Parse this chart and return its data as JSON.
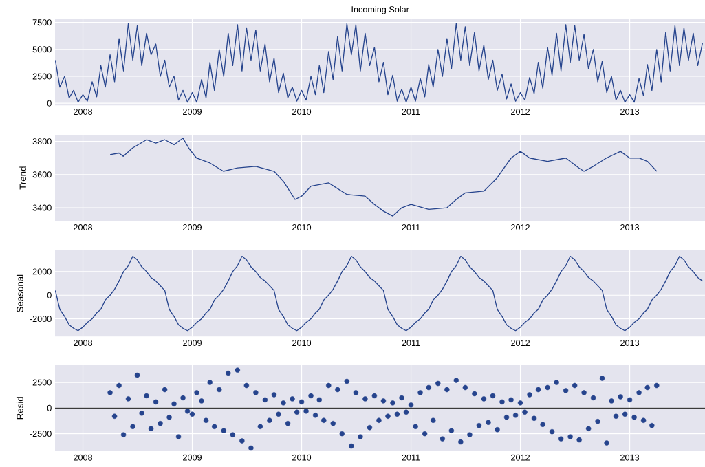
{
  "chart_data": [
    {
      "type": "line",
      "title": "Incoming Solar",
      "color": "#26448d",
      "grid": true,
      "xlim": [
        "2007-09-30",
        "2013-09-10"
      ],
      "ylim": [
        -200,
        7800
      ],
      "yticks": [
        0,
        2500,
        5000,
        7500
      ],
      "xticks": [
        {
          "value": "2008-01-01",
          "label": "2008"
        },
        {
          "value": "2009-01-01",
          "label": "2009"
        },
        {
          "value": "2010-01-01",
          "label": "2010"
        },
        {
          "value": "2011-01-01",
          "label": "2011"
        },
        {
          "value": "2012-01-01",
          "label": "2012"
        },
        {
          "value": "2013-01-01",
          "label": "2013"
        }
      ],
      "x": [
        "2007-10-01",
        "2007-10-16",
        "2007-11-01",
        "2007-11-16",
        "2007-12-01",
        "2007-12-16",
        "2008-01-01",
        "2008-01-16",
        "2008-02-01",
        "2008-02-16",
        "2008-03-01",
        "2008-03-16",
        "2008-04-01",
        "2008-04-16",
        "2008-05-01",
        "2008-05-16",
        "2008-06-01",
        "2008-06-16",
        "2008-07-01",
        "2008-07-16",
        "2008-08-01",
        "2008-08-16",
        "2008-09-01",
        "2008-09-16",
        "2008-10-01",
        "2008-10-16",
        "2008-11-01",
        "2008-11-16",
        "2008-12-01",
        "2008-12-16",
        "2009-01-01",
        "2009-01-16",
        "2009-02-01",
        "2009-02-16",
        "2009-03-01",
        "2009-03-16",
        "2009-04-01",
        "2009-04-16",
        "2009-05-01",
        "2009-05-16",
        "2009-06-01",
        "2009-06-16",
        "2009-07-01",
        "2009-07-16",
        "2009-08-01",
        "2009-08-16",
        "2009-09-01",
        "2009-09-16",
        "2009-10-01",
        "2009-10-16",
        "2009-11-01",
        "2009-11-16",
        "2009-12-01",
        "2009-12-16",
        "2010-01-01",
        "2010-01-16",
        "2010-02-01",
        "2010-02-16",
        "2010-03-01",
        "2010-03-16",
        "2010-04-01",
        "2010-04-16",
        "2010-05-01",
        "2010-05-16",
        "2010-06-01",
        "2010-06-16",
        "2010-07-01",
        "2010-07-16",
        "2010-08-01",
        "2010-08-16",
        "2010-09-01",
        "2010-09-16",
        "2010-10-01",
        "2010-10-16",
        "2010-11-01",
        "2010-11-16",
        "2010-12-01",
        "2010-12-16",
        "2011-01-01",
        "2011-01-16",
        "2011-02-01",
        "2011-02-16",
        "2011-03-01",
        "2011-03-16",
        "2011-04-01",
        "2011-04-16",
        "2011-05-01",
        "2011-05-16",
        "2011-06-01",
        "2011-06-16",
        "2011-07-01",
        "2011-07-16",
        "2011-08-01",
        "2011-08-16",
        "2011-09-01",
        "2011-09-16",
        "2011-10-01",
        "2011-10-16",
        "2011-11-01",
        "2011-11-16",
        "2011-12-01",
        "2011-12-16",
        "2012-01-01",
        "2012-01-16",
        "2012-02-01",
        "2012-02-16",
        "2012-03-01",
        "2012-03-16",
        "2012-04-01",
        "2012-04-16",
        "2012-05-01",
        "2012-05-16",
        "2012-06-01",
        "2012-06-16",
        "2012-07-01",
        "2012-07-16",
        "2012-08-01",
        "2012-08-16",
        "2012-09-01",
        "2012-09-16",
        "2012-10-01",
        "2012-10-16",
        "2012-11-01",
        "2012-11-16",
        "2012-12-01",
        "2012-12-16",
        "2013-01-01",
        "2013-01-16",
        "2013-02-01",
        "2013-02-16",
        "2013-03-01",
        "2013-03-16",
        "2013-04-01",
        "2013-04-16",
        "2013-05-01",
        "2013-05-16",
        "2013-06-01",
        "2013-06-16",
        "2013-07-01",
        "2013-07-16",
        "2013-08-01",
        "2013-08-16",
        "2013-09-01"
      ],
      "values": [
        4000,
        1500,
        2500,
        500,
        1200,
        100,
        800,
        200,
        2000,
        600,
        3500,
        1500,
        4500,
        2000,
        6000,
        3000,
        7400,
        4000,
        7200,
        3500,
        6500,
        4500,
        5500,
        2500,
        4000,
        1500,
        2500,
        300,
        1200,
        100,
        1000,
        100,
        2200,
        500,
        3800,
        1200,
        5000,
        2500,
        6500,
        3500,
        7300,
        3000,
        7000,
        4000,
        6800,
        3000,
        5500,
        2000,
        4200,
        1000,
        2800,
        500,
        1500,
        200,
        1200,
        300,
        2500,
        800,
        3500,
        1000,
        4800,
        2200,
        6200,
        3000,
        7400,
        4500,
        7300,
        3000,
        6500,
        3500,
        5200,
        2000,
        3800,
        800,
        2600,
        200,
        1300,
        100,
        1500,
        200,
        2300,
        600,
        3600,
        1500,
        5000,
        2500,
        6000,
        3200,
        7400,
        4000,
        7100,
        3500,
        6600,
        3000,
        5400,
        2200,
        4000,
        1200,
        2700,
        400,
        1800,
        200,
        1000,
        300,
        2400,
        900,
        3800,
        1400,
        5200,
        2600,
        6500,
        3000,
        7300,
        3800,
        7200,
        4000,
        6400,
        3200,
        5000,
        2000,
        3900,
        1000,
        2500,
        300,
        1200,
        100,
        800,
        100,
        2300,
        700,
        3600,
        1200,
        5000,
        2000,
        6600,
        3000,
        7200,
        3500,
        7000,
        4000,
        6500,
        3500,
        5600
      ]
    },
    {
      "type": "line",
      "ylabel": "Trend",
      "color": "#26448d",
      "grid": true,
      "xlim": [
        "2007-09-30",
        "2013-09-10"
      ],
      "ylim": [
        3320,
        3840
      ],
      "yticks": [
        3400,
        3600,
        3800
      ],
      "xticks": [
        {
          "value": "2008-01-01",
          "label": "2008"
        },
        {
          "value": "2009-01-01",
          "label": "2009"
        },
        {
          "value": "2010-01-01",
          "label": "2010"
        },
        {
          "value": "2011-01-01",
          "label": "2011"
        },
        {
          "value": "2012-01-01",
          "label": "2012"
        },
        {
          "value": "2013-01-01",
          "label": "2013"
        }
      ],
      "x": [
        "2008-04-01",
        "2008-05-01",
        "2008-05-15",
        "2008-06-15",
        "2008-08-01",
        "2008-09-01",
        "2008-10-01",
        "2008-11-01",
        "2008-12-01",
        "2008-12-20",
        "2009-01-15",
        "2009-03-01",
        "2009-04-15",
        "2009-06-01",
        "2009-08-01",
        "2009-10-01",
        "2009-11-01",
        "2009-12-10",
        "2010-01-01",
        "2010-02-01",
        "2010-04-01",
        "2010-06-01",
        "2010-08-01",
        "2010-09-01",
        "2010-10-01",
        "2010-11-01",
        "2010-12-01",
        "2011-01-01",
        "2011-03-01",
        "2011-05-01",
        "2011-06-01",
        "2011-07-01",
        "2011-09-01",
        "2011-10-15",
        "2011-12-01",
        "2012-01-01",
        "2012-02-01",
        "2012-04-01",
        "2012-06-01",
        "2012-07-15",
        "2012-08-01",
        "2012-09-01",
        "2012-10-15",
        "2012-12-01",
        "2013-01-01",
        "2013-02-01",
        "2013-03-01",
        "2013-04-01"
      ],
      "values": [
        3720,
        3730,
        3710,
        3760,
        3810,
        3790,
        3810,
        3780,
        3820,
        3760,
        3700,
        3670,
        3620,
        3640,
        3650,
        3620,
        3560,
        3450,
        3470,
        3530,
        3550,
        3480,
        3470,
        3420,
        3380,
        3350,
        3400,
        3420,
        3390,
        3400,
        3450,
        3490,
        3500,
        3580,
        3700,
        3740,
        3700,
        3680,
        3700,
        3640,
        3620,
        3650,
        3700,
        3740,
        3700,
        3700,
        3680,
        3620
      ]
    },
    {
      "type": "line",
      "ylabel": "Seasonal",
      "color": "#26448d",
      "grid": true,
      "xlim": [
        "2007-09-30",
        "2013-09-10"
      ],
      "ylim": [
        -3500,
        3800
      ],
      "yticks": [
        -2000,
        0,
        2000
      ],
      "xticks": [
        {
          "value": "2008-01-01",
          "label": "2008"
        },
        {
          "value": "2009-01-01",
          "label": "2009"
        },
        {
          "value": "2010-01-01",
          "label": "2010"
        },
        {
          "value": "2011-01-01",
          "label": "2011"
        },
        {
          "value": "2012-01-01",
          "label": "2012"
        },
        {
          "value": "2013-01-01",
          "label": "2013"
        }
      ],
      "x": [
        "2007-10-01",
        "2007-10-16",
        "2007-11-01",
        "2007-11-16",
        "2007-12-01",
        "2007-12-16",
        "2008-01-01",
        "2008-01-16",
        "2008-02-01",
        "2008-02-16",
        "2008-03-01",
        "2008-03-16",
        "2008-04-01",
        "2008-04-16",
        "2008-05-01",
        "2008-05-16",
        "2008-06-01",
        "2008-06-16",
        "2008-07-01",
        "2008-07-16",
        "2008-08-01",
        "2008-08-16",
        "2008-09-01",
        "2008-09-16",
        "2008-10-01",
        "2008-10-16",
        "2008-11-01",
        "2008-11-16",
        "2008-12-01",
        "2008-12-16",
        "2009-01-01",
        "2009-01-16",
        "2009-02-01",
        "2009-02-16",
        "2009-03-01",
        "2009-03-16",
        "2009-04-01",
        "2009-04-16",
        "2009-05-01",
        "2009-05-16",
        "2009-06-01",
        "2009-06-16",
        "2009-07-01",
        "2009-07-16",
        "2009-08-01",
        "2009-08-16",
        "2009-09-01",
        "2009-09-16",
        "2009-10-01",
        "2009-10-16",
        "2009-11-01",
        "2009-11-16",
        "2009-12-01",
        "2009-12-16",
        "2010-01-01",
        "2010-01-16",
        "2010-02-01",
        "2010-02-16",
        "2010-03-01",
        "2010-03-16",
        "2010-04-01",
        "2010-04-16",
        "2010-05-01",
        "2010-05-16",
        "2010-06-01",
        "2010-06-16",
        "2010-07-01",
        "2010-07-16",
        "2010-08-01",
        "2010-08-16",
        "2010-09-01",
        "2010-09-16",
        "2010-10-01",
        "2010-10-16",
        "2010-11-01",
        "2010-11-16",
        "2010-12-01",
        "2010-12-16",
        "2011-01-01",
        "2011-01-16",
        "2011-02-01",
        "2011-02-16",
        "2011-03-01",
        "2011-03-16",
        "2011-04-01",
        "2011-04-16",
        "2011-05-01",
        "2011-05-16",
        "2011-06-01",
        "2011-06-16",
        "2011-07-01",
        "2011-07-16",
        "2011-08-01",
        "2011-08-16",
        "2011-09-01",
        "2011-09-16",
        "2011-10-01",
        "2011-10-16",
        "2011-11-01",
        "2011-11-16",
        "2011-12-01",
        "2011-12-16",
        "2012-01-01",
        "2012-01-16",
        "2012-02-01",
        "2012-02-16",
        "2012-03-01",
        "2012-03-16",
        "2012-04-01",
        "2012-04-16",
        "2012-05-01",
        "2012-05-16",
        "2012-06-01",
        "2012-06-16",
        "2012-07-01",
        "2012-07-16",
        "2012-08-01",
        "2012-08-16",
        "2012-09-01",
        "2012-09-16",
        "2012-10-01",
        "2012-10-16",
        "2012-11-01",
        "2012-11-16",
        "2012-12-01",
        "2012-12-16",
        "2013-01-01",
        "2013-01-16",
        "2013-02-01",
        "2013-02-16",
        "2013-03-01",
        "2013-03-16",
        "2013-04-01",
        "2013-04-16",
        "2013-05-01",
        "2013-05-16",
        "2013-06-01",
        "2013-06-16",
        "2013-07-01",
        "2013-07-16",
        "2013-08-01",
        "2013-08-16",
        "2013-09-01"
      ],
      "values": [
        400,
        -1200,
        -1800,
        -2500,
        -2800,
        -3000,
        -2700,
        -2300,
        -2000,
        -1500,
        -1200,
        -400,
        0,
        500,
        1200,
        2000,
        2500,
        3300,
        3000,
        2400,
        2000,
        1500,
        1200,
        800,
        400,
        -1200,
        -1800,
        -2500,
        -2800,
        -3000,
        -2700,
        -2300,
        -2000,
        -1500,
        -1200,
        -400,
        0,
        500,
        1200,
        2000,
        2500,
        3300,
        3000,
        2400,
        2000,
        1500,
        1200,
        800,
        400,
        -1200,
        -1800,
        -2500,
        -2800,
        -3000,
        -2700,
        -2300,
        -2000,
        -1500,
        -1200,
        -400,
        0,
        500,
        1200,
        2000,
        2500,
        3300,
        3000,
        2400,
        2000,
        1500,
        1200,
        800,
        400,
        -1200,
        -1800,
        -2500,
        -2800,
        -3000,
        -2700,
        -2300,
        -2000,
        -1500,
        -1200,
        -400,
        0,
        500,
        1200,
        2000,
        2500,
        3300,
        3000,
        2400,
        2000,
        1500,
        1200,
        800,
        400,
        -1200,
        -1800,
        -2500,
        -2800,
        -3000,
        -2700,
        -2300,
        -2000,
        -1500,
        -1200,
        -400,
        0,
        500,
        1200,
        2000,
        2500,
        3300,
        3000,
        2400,
        2000,
        1500,
        1200,
        800,
        400,
        -1200,
        -1800,
        -2500,
        -2800,
        -3000,
        -2700,
        -2300,
        -2000,
        -1500,
        -1200,
        -400,
        0,
        500,
        1200,
        2000,
        2500,
        3300,
        3000,
        2400,
        2000,
        1500,
        1200
      ]
    },
    {
      "type": "scatter",
      "ylabel": "Resid",
      "color": "#26448d",
      "marker": "circle",
      "grid": true,
      "xlim": [
        "2007-09-30",
        "2013-09-10"
      ],
      "ylim": [
        -4200,
        4200
      ],
      "yticks": [
        -2500,
        0,
        2500
      ],
      "xticks": [
        {
          "value": "2008-01-01",
          "label": "2008"
        },
        {
          "value": "2009-01-01",
          "label": "2009"
        },
        {
          "value": "2010-01-01",
          "label": "2010"
        },
        {
          "value": "2011-01-01",
          "label": "2011"
        },
        {
          "value": "2012-01-01",
          "label": "2012"
        },
        {
          "value": "2013-01-01",
          "label": "2013"
        }
      ],
      "ref_lines": [
        {
          "axis": "y",
          "value": 0,
          "color": "#000000"
        }
      ],
      "x": [
        "2008-04-01",
        "2008-04-16",
        "2008-05-01",
        "2008-05-16",
        "2008-06-01",
        "2008-06-16",
        "2008-07-01",
        "2008-07-16",
        "2008-08-01",
        "2008-08-16",
        "2008-09-01",
        "2008-09-16",
        "2008-10-01",
        "2008-10-16",
        "2008-11-01",
        "2008-11-16",
        "2008-12-01",
        "2008-12-16",
        "2009-01-01",
        "2009-01-16",
        "2009-02-01",
        "2009-02-16",
        "2009-03-01",
        "2009-03-16",
        "2009-04-01",
        "2009-04-16",
        "2009-05-01",
        "2009-05-16",
        "2009-06-01",
        "2009-06-16",
        "2009-07-01",
        "2009-07-16",
        "2009-08-01",
        "2009-08-16",
        "2009-09-01",
        "2009-09-16",
        "2009-10-01",
        "2009-10-16",
        "2009-11-01",
        "2009-11-16",
        "2009-12-01",
        "2009-12-16",
        "2010-01-01",
        "2010-01-16",
        "2010-02-01",
        "2010-02-16",
        "2010-03-01",
        "2010-03-16",
        "2010-04-01",
        "2010-04-16",
        "2010-05-01",
        "2010-05-16",
        "2010-06-01",
        "2010-06-16",
        "2010-07-01",
        "2010-07-16",
        "2010-08-01",
        "2010-08-16",
        "2010-09-01",
        "2010-09-16",
        "2010-10-01",
        "2010-10-16",
        "2010-11-01",
        "2010-11-16",
        "2010-12-01",
        "2010-12-16",
        "2011-01-01",
        "2011-01-16",
        "2011-02-01",
        "2011-02-16",
        "2011-03-01",
        "2011-03-16",
        "2011-04-01",
        "2011-04-16",
        "2011-05-01",
        "2011-05-16",
        "2011-06-01",
        "2011-06-16",
        "2011-07-01",
        "2011-07-16",
        "2011-08-01",
        "2011-08-16",
        "2011-09-01",
        "2011-09-16",
        "2011-10-01",
        "2011-10-16",
        "2011-11-01",
        "2011-11-16",
        "2011-12-01",
        "2011-12-16",
        "2012-01-01",
        "2012-01-16",
        "2012-02-01",
        "2012-02-16",
        "2012-03-01",
        "2012-03-16",
        "2012-04-01",
        "2012-04-16",
        "2012-05-01",
        "2012-05-16",
        "2012-06-01",
        "2012-06-16",
        "2012-07-01",
        "2012-07-16",
        "2012-08-01",
        "2012-08-16",
        "2012-09-01",
        "2012-09-16",
        "2012-10-01",
        "2012-10-16",
        "2012-11-01",
        "2012-11-16",
        "2012-12-01",
        "2012-12-16",
        "2013-01-01",
        "2013-01-16",
        "2013-02-01",
        "2013-02-16",
        "2013-03-01",
        "2013-03-16",
        "2013-04-01"
      ],
      "values": [
        1500,
        -800,
        2200,
        -2600,
        900,
        -1800,
        3200,
        -500,
        1200,
        -2000,
        600,
        -1500,
        1800,
        -900,
        400,
        -2800,
        1000,
        -300,
        -600,
        1500,
        700,
        -1200,
        2500,
        -1800,
        1800,
        -2200,
        3400,
        -2600,
        3700,
        -3200,
        2200,
        -3900,
        1500,
        -1800,
        800,
        -1200,
        1300,
        -600,
        500,
        -1500,
        900,
        -400,
        600,
        -300,
        1200,
        -700,
        800,
        -1200,
        2200,
        -1500,
        1800,
        -2500,
        2600,
        -3700,
        1500,
        -2800,
        900,
        -1900,
        1200,
        -1200,
        700,
        -800,
        500,
        -600,
        1000,
        -400,
        300,
        -1800,
        1500,
        -2500,
        2000,
        -1200,
        2400,
        -3000,
        1800,
        -2200,
        2700,
        -3300,
        2000,
        -2600,
        1400,
        -1700,
        900,
        -1400,
        1200,
        -2100,
        600,
        -900,
        800,
        -700,
        500,
        -400,
        1300,
        -1000,
        1800,
        -1600,
        2000,
        -2300,
        2500,
        -3000,
        1700,
        -2800,
        2200,
        -3100,
        1500,
        -2000,
        1000,
        -1300,
        2900,
        -3400,
        700,
        -800,
        1100,
        -600,
        800,
        -900,
        1500,
        -1200,
        2000,
        -1700,
        2200
      ]
    }
  ]
}
